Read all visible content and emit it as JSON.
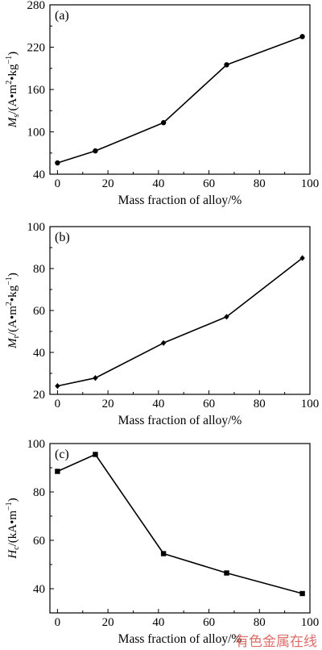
{
  "chart_data": [
    {
      "type": "line",
      "panel_label": "(a)",
      "x": [
        0,
        15,
        42,
        67,
        97
      ],
      "series": [
        {
          "values": [
            56,
            73,
            113,
            195,
            235
          ],
          "marker": "circle"
        }
      ],
      "ylabel_main": "M",
      "ylabel_sub": "s",
      "ylabel_unit": "/(A•m",
      "ylabel_unit_sup1": "2",
      "ylabel_unit_mid": "•kg",
      "ylabel_unit_sup2": "−1",
      "ylabel_unit_end": ")",
      "xlabel": "Mass fraction of alloy/%",
      "xlim": [
        -3,
        100
      ],
      "ylim": [
        40,
        280
      ],
      "xticks": [
        0,
        20,
        40,
        60,
        80,
        100
      ],
      "yticks": [
        40,
        100,
        160,
        220,
        280
      ],
      "grid": false
    },
    {
      "type": "line",
      "panel_label": "(b)",
      "x": [
        0,
        15,
        42,
        67,
        97
      ],
      "series": [
        {
          "values": [
            24,
            27.8,
            44.5,
            57,
            85
          ],
          "marker": "diamond"
        }
      ],
      "ylabel_main": "M",
      "ylabel_sub": "r",
      "ylabel_unit": "/(A•m",
      "ylabel_unit_sup1": "2",
      "ylabel_unit_mid": "•kg",
      "ylabel_unit_sup2": "−1",
      "ylabel_unit_end": ")",
      "xlabel": "Mass fraction of alloy/%",
      "xlim": [
        -3,
        100
      ],
      "ylim": [
        20,
        100
      ],
      "xticks": [
        0,
        20,
        40,
        60,
        80,
        100
      ],
      "yticks": [
        20,
        40,
        60,
        80,
        100
      ],
      "grid": false
    },
    {
      "type": "line",
      "panel_label": "(c)",
      "x": [
        0,
        15,
        42,
        67,
        97
      ],
      "series": [
        {
          "values": [
            88.5,
            95.5,
            54.5,
            46.5,
            38
          ],
          "marker": "square"
        }
      ],
      "ylabel_main": "H",
      "ylabel_sub": "c",
      "ylabel_unit": "/(kA•m",
      "ylabel_unit_sup1": "",
      "ylabel_unit_mid": "",
      "ylabel_unit_sup2": "−1",
      "ylabel_unit_end": ")",
      "xlabel": "Mass fraction of alloy/%",
      "xlim": [
        -3,
        100
      ],
      "ylim": [
        30,
        100
      ],
      "xticks": [
        0,
        20,
        40,
        60,
        80,
        100
      ],
      "yticks": [
        40,
        60,
        80,
        100
      ],
      "grid": false
    }
  ],
  "watermark": {
    "text": "有色金属在线",
    "color": "#d9534f"
  },
  "line_color": "#000000"
}
